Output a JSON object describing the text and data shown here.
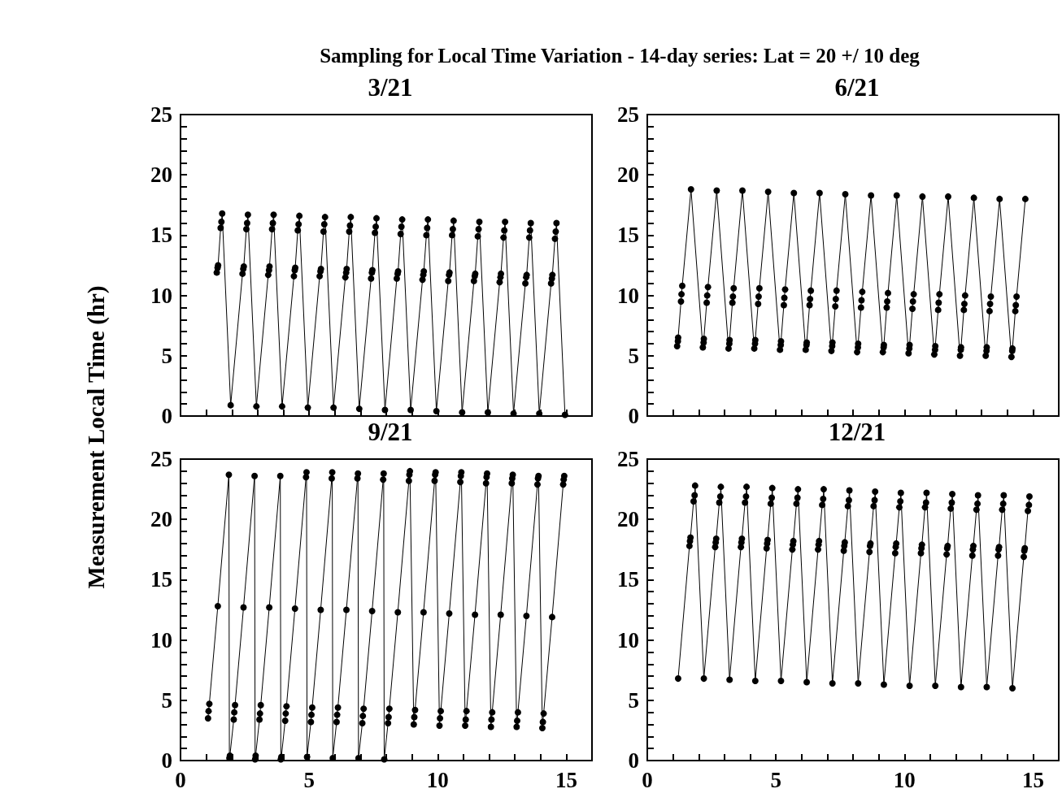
{
  "chart_data": [
    {
      "type": "line",
      "title": "3/21",
      "ylabel": "Measurement Local Time (hr)",
      "annotations": [
        "Sampling for Local Time Variation - 14-day series: Lat = 20 +/ 10 deg"
      ],
      "marker": "circle",
      "tick_labels": "y",
      "xlim": [
        0,
        16
      ],
      "ylim": [
        0,
        25
      ],
      "xticks": [
        0,
        {
          "value": 1,
          "label": null
        },
        {
          "value": 2,
          "label": null
        },
        {
          "value": 3,
          "label": null
        },
        {
          "value": 4,
          "label": null
        },
        5,
        {
          "value": 6,
          "label": null
        },
        {
          "value": 7,
          "label": null
        },
        {
          "value": 8,
          "label": null
        },
        {
          "value": 9,
          "label": null
        },
        10,
        {
          "value": 11,
          "label": null
        },
        {
          "value": 12,
          "label": null
        },
        {
          "value": 13,
          "label": null
        },
        {
          "value": 14,
          "label": null
        },
        15
      ],
      "yticks": [
        0,
        {
          "value": 1,
          "label": null
        },
        {
          "value": 2,
          "label": null
        },
        {
          "value": 3,
          "label": null
        },
        {
          "value": 4,
          "label": null
        },
        5,
        {
          "value": 6,
          "label": null
        },
        {
          "value": 7,
          "label": null
        },
        {
          "value": 8,
          "label": null
        },
        {
          "value": 9,
          "label": null
        },
        10,
        {
          "value": 11,
          "label": null
        },
        {
          "value": 12,
          "label": null
        },
        {
          "value": 13,
          "label": null
        },
        {
          "value": 14,
          "label": null
        },
        15,
        {
          "value": 16,
          "label": null
        },
        {
          "value": 17,
          "label": null
        },
        {
          "value": 18,
          "label": null
        },
        {
          "value": 19,
          "label": null
        },
        20,
        {
          "value": 21,
          "label": null
        },
        {
          "value": 22,
          "label": null
        },
        {
          "value": 23,
          "label": null
        },
        {
          "value": 24,
          "label": null
        },
        25
      ],
      "series": [
        {
          "color": "#000000",
          "x": [
            1.41,
            1.44,
            1.46,
            1.56,
            1.59,
            1.62,
            1.95,
            2.41,
            2.44,
            2.46,
            2.56,
            2.59,
            2.62,
            2.95,
            3.41,
            3.44,
            3.46,
            3.56,
            3.59,
            3.62,
            3.95,
            4.41,
            4.44,
            4.46,
            4.56,
            4.59,
            4.62,
            4.95,
            5.41,
            5.44,
            5.46,
            5.56,
            5.59,
            5.62,
            5.95,
            6.41,
            6.44,
            6.46,
            6.56,
            6.59,
            6.62,
            6.95,
            7.41,
            7.44,
            7.46,
            7.56,
            7.59,
            7.62,
            7.95,
            8.41,
            8.44,
            8.46,
            8.56,
            8.59,
            8.62,
            8.95,
            9.41,
            9.44,
            9.46,
            9.56,
            9.59,
            9.62,
            9.95,
            10.41,
            10.44,
            10.46,
            10.56,
            10.59,
            10.62,
            10.95,
            11.41,
            11.44,
            11.46,
            11.56,
            11.59,
            11.62,
            11.95,
            12.41,
            12.44,
            12.46,
            12.56,
            12.59,
            12.62,
            12.95,
            13.41,
            13.44,
            13.46,
            13.56,
            13.59,
            13.62,
            13.95,
            14.41,
            14.44,
            14.46,
            14.56,
            14.59,
            14.62,
            14.95
          ],
          "values": [
            11.9,
            12.3,
            12.5,
            15.6,
            16.1,
            16.8,
            0.9,
            11.8,
            12.2,
            12.4,
            15.5,
            16.0,
            16.7,
            0.8,
            11.7,
            12.1,
            12.4,
            15.5,
            16.0,
            16.7,
            0.8,
            11.6,
            12.1,
            12.3,
            15.4,
            15.9,
            16.6,
            0.7,
            11.6,
            12.0,
            12.2,
            15.3,
            15.9,
            16.5,
            0.7,
            11.5,
            11.9,
            12.2,
            15.3,
            15.8,
            16.5,
            0.6,
            11.4,
            11.9,
            12.1,
            15.2,
            15.7,
            16.4,
            0.5,
            11.4,
            11.8,
            12.0,
            15.1,
            15.7,
            16.3,
            0.5,
            11.3,
            11.7,
            12.0,
            15.0,
            15.6,
            16.3,
            0.4,
            11.2,
            11.7,
            11.9,
            15.0,
            15.5,
            16.2,
            0.3,
            11.2,
            11.6,
            11.8,
            14.9,
            15.5,
            16.1,
            0.3,
            11.1,
            11.5,
            11.8,
            14.8,
            15.4,
            16.1,
            0.2,
            11.0,
            11.5,
            11.7,
            14.8,
            15.4,
            16.0,
            0.2,
            11.0,
            11.4,
            11.7,
            14.7,
            15.3,
            16.0,
            0.1
          ]
        }
      ]
    },
    {
      "type": "line",
      "title": "6/21",
      "marker": "circle",
      "tick_labels": "y",
      "xlim": [
        0,
        16
      ],
      "ylim": [
        0,
        25
      ],
      "xticks": [
        0,
        {
          "value": 1,
          "label": null
        },
        {
          "value": 2,
          "label": null
        },
        {
          "value": 3,
          "label": null
        },
        {
          "value": 4,
          "label": null
        },
        5,
        {
          "value": 6,
          "label": null
        },
        {
          "value": 7,
          "label": null
        },
        {
          "value": 8,
          "label": null
        },
        {
          "value": 9,
          "label": null
        },
        10,
        {
          "value": 11,
          "label": null
        },
        {
          "value": 12,
          "label": null
        },
        {
          "value": 13,
          "label": null
        },
        {
          "value": 14,
          "label": null
        },
        15
      ],
      "yticks": [
        0,
        {
          "value": 1,
          "label": null
        },
        {
          "value": 2,
          "label": null
        },
        {
          "value": 3,
          "label": null
        },
        {
          "value": 4,
          "label": null
        },
        5,
        {
          "value": 6,
          "label": null
        },
        {
          "value": 7,
          "label": null
        },
        {
          "value": 8,
          "label": null
        },
        {
          "value": 9,
          "label": null
        },
        10,
        {
          "value": 11,
          "label": null
        },
        {
          "value": 12,
          "label": null
        },
        {
          "value": 13,
          "label": null
        },
        {
          "value": 14,
          "label": null
        },
        15,
        {
          "value": 16,
          "label": null
        },
        {
          "value": 17,
          "label": null
        },
        {
          "value": 18,
          "label": null
        },
        {
          "value": 19,
          "label": null
        },
        20,
        {
          "value": 21,
          "label": null
        },
        {
          "value": 22,
          "label": null
        },
        {
          "value": 23,
          "label": null
        },
        {
          "value": 24,
          "label": null
        },
        25
      ],
      "series": [
        {
          "color": "#000000",
          "x": [
            1.16,
            1.19,
            1.2,
            1.31,
            1.33,
            1.36,
            1.7,
            2.16,
            2.19,
            2.2,
            2.31,
            2.33,
            2.36,
            2.7,
            3.16,
            3.19,
            3.2,
            3.31,
            3.33,
            3.36,
            3.7,
            4.16,
            4.19,
            4.2,
            4.31,
            4.33,
            4.36,
            4.7,
            5.16,
            5.19,
            5.2,
            5.31,
            5.33,
            5.36,
            5.7,
            6.16,
            6.19,
            6.2,
            6.31,
            6.33,
            6.36,
            6.7,
            7.16,
            7.19,
            7.2,
            7.31,
            7.33,
            7.36,
            7.7,
            8.16,
            8.19,
            8.2,
            8.31,
            8.33,
            8.36,
            8.7,
            9.16,
            9.19,
            9.2,
            9.31,
            9.33,
            9.36,
            9.7,
            10.16,
            10.19,
            10.2,
            10.31,
            10.33,
            10.36,
            10.7,
            11.16,
            11.19,
            11.2,
            11.31,
            11.33,
            11.36,
            11.7,
            12.16,
            12.19,
            12.2,
            12.31,
            12.33,
            12.36,
            12.7,
            13.16,
            13.19,
            13.2,
            13.31,
            13.33,
            13.36,
            13.7,
            14.16,
            14.19,
            14.2,
            14.31,
            14.33,
            14.36,
            14.7
          ],
          "values": [
            5.8,
            6.2,
            6.5,
            9.5,
            10.1,
            10.8,
            18.8,
            5.7,
            6.1,
            6.4,
            9.4,
            10.0,
            10.7,
            18.7,
            5.6,
            6.0,
            6.3,
            9.4,
            9.9,
            10.6,
            18.7,
            5.6,
            6.0,
            6.3,
            9.3,
            9.9,
            10.6,
            18.6,
            5.5,
            5.9,
            6.2,
            9.2,
            9.8,
            10.5,
            18.5,
            5.5,
            5.9,
            6.1,
            9.2,
            9.7,
            10.4,
            18.5,
            5.4,
            5.8,
            6.1,
            9.1,
            9.7,
            10.4,
            18.4,
            5.3,
            5.7,
            6.0,
            9.0,
            9.6,
            10.3,
            18.3,
            5.3,
            5.7,
            5.9,
            9.0,
            9.5,
            10.2,
            18.3,
            5.2,
            5.6,
            5.9,
            8.9,
            9.5,
            10.1,
            18.2,
            5.1,
            5.5,
            5.8,
            8.8,
            9.4,
            10.1,
            18.2,
            5.0,
            5.5,
            5.7,
            8.8,
            9.3,
            10.0,
            18.1,
            5.0,
            5.4,
            5.7,
            8.7,
            9.3,
            9.9,
            18.0,
            4.9,
            5.4,
            5.6,
            8.7,
            9.2,
            9.9,
            18.0
          ]
        }
      ]
    },
    {
      "type": "line",
      "title": "9/21",
      "marker": "circle",
      "xlim": [
        0,
        16
      ],
      "ylim": [
        0,
        25
      ],
      "xticks": [
        0,
        {
          "value": 1,
          "label": null
        },
        {
          "value": 2,
          "label": null
        },
        {
          "value": 3,
          "label": null
        },
        {
          "value": 4,
          "label": null
        },
        5,
        {
          "value": 6,
          "label": null
        },
        {
          "value": 7,
          "label": null
        },
        {
          "value": 8,
          "label": null
        },
        {
          "value": 9,
          "label": null
        },
        10,
        {
          "value": 11,
          "label": null
        },
        {
          "value": 12,
          "label": null
        },
        {
          "value": 13,
          "label": null
        },
        {
          "value": 14,
          "label": null
        },
        15
      ],
      "yticks": [
        0,
        {
          "value": 1,
          "label": null
        },
        {
          "value": 2,
          "label": null
        },
        {
          "value": 3,
          "label": null
        },
        {
          "value": 4,
          "label": null
        },
        5,
        {
          "value": 6,
          "label": null
        },
        {
          "value": 7,
          "label": null
        },
        {
          "value": 8,
          "label": null
        },
        {
          "value": 9,
          "label": null
        },
        10,
        {
          "value": 11,
          "label": null
        },
        {
          "value": 12,
          "label": null
        },
        {
          "value": 13,
          "label": null
        },
        {
          "value": 14,
          "label": null
        },
        15,
        {
          "value": 16,
          "label": null
        },
        {
          "value": 17,
          "label": null
        },
        {
          "value": 18,
          "label": null
        },
        {
          "value": 19,
          "label": null
        },
        20,
        {
          "value": 21,
          "label": null
        },
        {
          "value": 22,
          "label": null
        },
        {
          "value": 23,
          "label": null
        },
        {
          "value": 24,
          "label": null
        },
        25
      ],
      "series": [
        {
          "color": "#000000",
          "x": [
            1.07,
            1.09,
            1.12,
            1.45,
            1.88,
            1.9,
            1.92,
            2.07,
            2.09,
            2.12,
            2.45,
            2.88,
            2.9,
            2.92,
            3.07,
            3.09,
            3.12,
            3.45,
            3.88,
            3.9,
            3.92,
            4.07,
            4.09,
            4.12,
            4.45,
            4.88,
            4.9,
            4.92,
            5.07,
            5.09,
            5.12,
            5.45,
            5.88,
            5.9,
            5.92,
            6.07,
            6.09,
            6.12,
            6.45,
            6.88,
            6.9,
            6.92,
            7.07,
            7.09,
            7.12,
            7.45,
            7.88,
            7.9,
            7.92,
            8.07,
            8.09,
            8.12,
            8.45,
            8.88,
            8.9,
            8.92,
            9.07,
            9.09,
            9.12,
            9.45,
            9.88,
            9.9,
            9.92,
            10.07,
            10.09,
            10.12,
            10.45,
            10.88,
            10.9,
            10.92,
            11.07,
            11.09,
            11.12,
            11.45,
            11.88,
            11.9,
            11.92,
            12.07,
            12.09,
            12.12,
            12.45,
            12.88,
            12.9,
            12.92,
            13.07,
            13.09,
            13.12,
            13.45,
            13.88,
            13.9,
            13.92,
            14.07,
            14.09,
            14.12,
            14.45,
            14.88,
            14.9,
            14.92
          ],
          "values": [
            3.5,
            4.1,
            4.7,
            12.8,
            23.7,
            0.2,
            0.4,
            3.4,
            4.0,
            4.6,
            12.7,
            23.6,
            0.1,
            0.4,
            3.4,
            3.9,
            4.6,
            12.7,
            23.6,
            0.1,
            0.3,
            3.3,
            3.9,
            4.5,
            12.6,
            23.5,
            23.9,
            0.3,
            3.2,
            3.8,
            4.4,
            12.5,
            23.4,
            23.9,
            0.2,
            3.2,
            3.8,
            4.4,
            12.5,
            23.4,
            23.8,
            0.2,
            3.1,
            3.7,
            4.3,
            12.4,
            23.3,
            23.8,
            0.1,
            3.1,
            3.6,
            4.3,
            12.3,
            23.2,
            23.7,
            24.0,
            3.0,
            3.6,
            4.2,
            12.3,
            23.2,
            23.7,
            23.9,
            2.9,
            3.5,
            4.1,
            12.2,
            23.1,
            23.6,
            23.9,
            2.9,
            3.4,
            4.1,
            12.1,
            23.0,
            23.5,
            23.8,
            2.8,
            3.4,
            4.0,
            12.1,
            23.0,
            23.4,
            23.7,
            2.8,
            3.3,
            4.0,
            12.0,
            22.9,
            23.4,
            23.6,
            2.7,
            3.2,
            3.9,
            11.9,
            22.9,
            23.3,
            23.6
          ]
        }
      ]
    },
    {
      "type": "line",
      "title": "12/21",
      "marker": "circle",
      "xlim": [
        0,
        16
      ],
      "ylim": [
        0,
        25
      ],
      "xticks": [
        0,
        {
          "value": 1,
          "label": null
        },
        {
          "value": 2,
          "label": null
        },
        {
          "value": 3,
          "label": null
        },
        {
          "value": 4,
          "label": null
        },
        5,
        {
          "value": 6,
          "label": null
        },
        {
          "value": 7,
          "label": null
        },
        {
          "value": 8,
          "label": null
        },
        {
          "value": 9,
          "label": null
        },
        10,
        {
          "value": 11,
          "label": null
        },
        {
          "value": 12,
          "label": null
        },
        {
          "value": 13,
          "label": null
        },
        {
          "value": 14,
          "label": null
        },
        15
      ],
      "yticks": [
        0,
        {
          "value": 1,
          "label": null
        },
        {
          "value": 2,
          "label": null
        },
        {
          "value": 3,
          "label": null
        },
        {
          "value": 4,
          "label": null
        },
        5,
        {
          "value": 6,
          "label": null
        },
        {
          "value": 7,
          "label": null
        },
        {
          "value": 8,
          "label": null
        },
        {
          "value": 9,
          "label": null
        },
        10,
        {
          "value": 11,
          "label": null
        },
        {
          "value": 12,
          "label": null
        },
        {
          "value": 13,
          "label": null
        },
        {
          "value": 14,
          "label": null
        },
        15,
        {
          "value": 16,
          "label": null
        },
        {
          "value": 17,
          "label": null
        },
        {
          "value": 18,
          "label": null
        },
        {
          "value": 19,
          "label": null
        },
        20,
        {
          "value": 21,
          "label": null
        },
        {
          "value": 22,
          "label": null
        },
        {
          "value": 23,
          "label": null
        },
        {
          "value": 24,
          "label": null
        },
        25
      ],
      "series": [
        {
          "color": "#000000",
          "x": [
            1.2,
            1.64,
            1.66,
            1.68,
            1.8,
            1.84,
            1.86,
            2.2,
            2.64,
            2.66,
            2.68,
            2.8,
            2.84,
            2.86,
            3.2,
            3.64,
            3.66,
            3.68,
            3.8,
            3.84,
            3.86,
            4.2,
            4.64,
            4.66,
            4.68,
            4.8,
            4.84,
            4.86,
            5.2,
            5.64,
            5.66,
            5.68,
            5.8,
            5.84,
            5.86,
            6.2,
            6.64,
            6.66,
            6.68,
            6.8,
            6.84,
            6.86,
            7.2,
            7.64,
            7.66,
            7.68,
            7.8,
            7.84,
            7.86,
            8.2,
            8.64,
            8.66,
            8.68,
            8.8,
            8.84,
            8.86,
            9.2,
            9.64,
            9.66,
            9.68,
            9.8,
            9.84,
            9.86,
            10.2,
            10.64,
            10.66,
            10.68,
            10.8,
            10.84,
            10.86,
            11.2,
            11.64,
            11.66,
            11.68,
            11.8,
            11.84,
            11.86,
            12.2,
            12.64,
            12.66,
            12.68,
            12.8,
            12.84,
            12.86,
            13.2,
            13.64,
            13.66,
            13.68,
            13.8,
            13.84,
            13.86,
            14.2,
            14.64,
            14.66,
            14.68,
            14.8,
            14.84,
            14.86
          ],
          "values": [
            6.8,
            17.8,
            18.2,
            18.5,
            21.5,
            22.0,
            22.8,
            6.8,
            17.7,
            18.1,
            18.4,
            21.4,
            21.9,
            22.7,
            6.7,
            17.7,
            18.1,
            18.4,
            21.4,
            21.9,
            22.7,
            6.6,
            17.6,
            18.0,
            18.3,
            21.3,
            21.8,
            22.6,
            6.6,
            17.5,
            17.9,
            18.2,
            21.3,
            21.8,
            22.5,
            6.5,
            17.5,
            17.9,
            18.2,
            21.2,
            21.7,
            22.5,
            6.4,
            17.4,
            17.8,
            18.1,
            21.1,
            21.6,
            22.4,
            6.4,
            17.3,
            17.8,
            18.0,
            21.1,
            21.6,
            22.3,
            6.3,
            17.2,
            17.7,
            18.0,
            21.0,
            21.5,
            22.2,
            6.2,
            17.2,
            17.6,
            17.9,
            21.0,
            21.4,
            22.2,
            6.2,
            17.1,
            17.6,
            17.8,
            20.9,
            21.4,
            22.1,
            6.1,
            17.0,
            17.5,
            17.8,
            20.8,
            21.3,
            22.0,
            6.1,
            17.0,
            17.5,
            17.7,
            20.8,
            21.3,
            22.0,
            6.0,
            16.9,
            17.4,
            17.6,
            20.7,
            21.2,
            21.9
          ]
        }
      ]
    }
  ]
}
